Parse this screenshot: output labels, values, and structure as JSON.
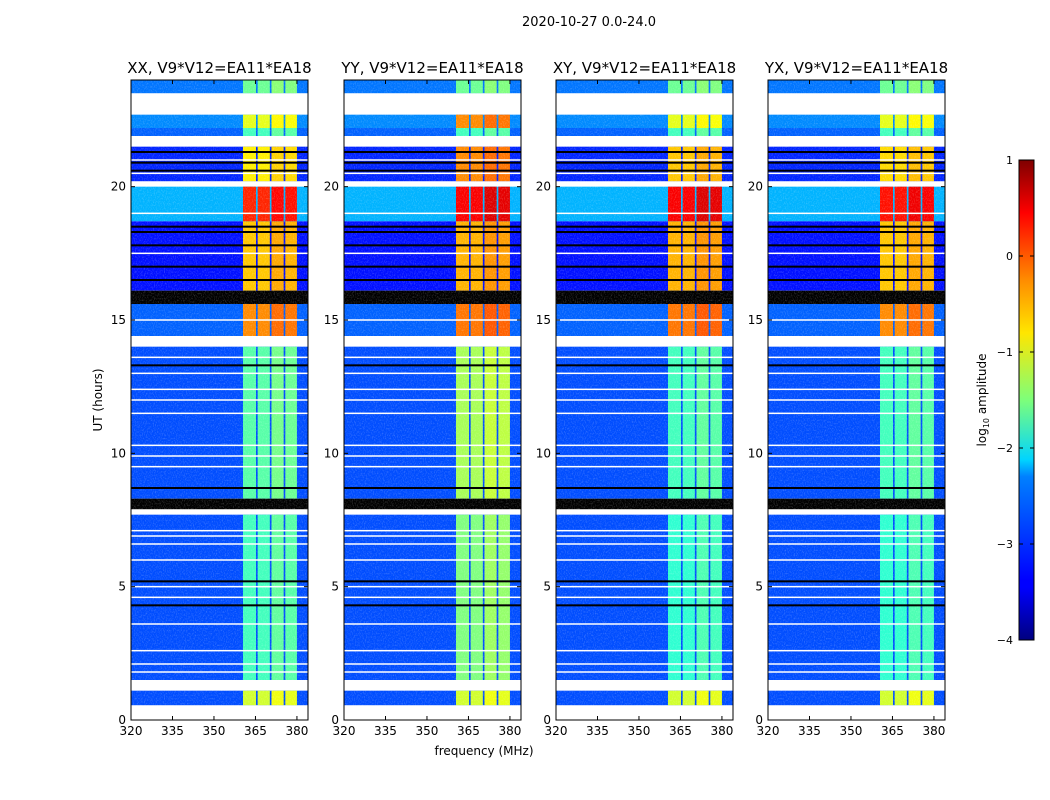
{
  "chart_data": {
    "type": "heatmap",
    "title": "2020-10-27 0.0-24.0",
    "xlabel": "frequency (MHz)",
    "ylabel": "UT (hours)",
    "xlim": [
      320,
      384
    ],
    "ylim": [
      0,
      24
    ],
    "xticks": [
      "320",
      "335",
      "350",
      "365",
      "380"
    ],
    "xtick_values": [
      320,
      335,
      350,
      365,
      380
    ],
    "yticks": [
      "0",
      "5",
      "10",
      "15",
      "20"
    ],
    "ytick_values": [
      0,
      5,
      10,
      15,
      20
    ],
    "panels": [
      {
        "title": "XX, V9*V12=EA11*EA18"
      },
      {
        "title": "YY, V9*V12=EA11*EA18"
      },
      {
        "title": "XY, V9*V12=EA11*EA18"
      },
      {
        "title": "YX, V9*V12=EA11*EA18"
      }
    ],
    "colorbar": {
      "label_main": "log",
      "label_sub": "10",
      "label_rest": " amplitude",
      "range": [
        -4,
        1
      ],
      "ticks": [
        "1",
        "0",
        "−1",
        "−2",
        "−3",
        "−4"
      ],
      "tick_values": [
        1,
        0,
        -1,
        -2,
        -3,
        -4
      ],
      "colormap": "jet"
    },
    "signal_blocks_mhz": [
      [
        360.5,
        365.2
      ],
      [
        365.8,
        370.2
      ],
      [
        370.8,
        375.2
      ],
      [
        375.8,
        380.0
      ]
    ],
    "block_offsets": [
      0,
      0,
      0.15,
      0.1
    ],
    "segments": [
      {
        "t": [
          23.5,
          24
        ],
        "bg": -2.8,
        "sig": [
          -1.6,
          -1.6,
          -1.6,
          -1.6
        ]
      },
      {
        "t": [
          22.7,
          23.5
        ],
        "flag": true
      },
      {
        "t": [
          22.2,
          22.7
        ],
        "bg": -2.7,
        "sig": [
          -1.0,
          -0.3,
          -1.0,
          -1.0
        ]
      },
      {
        "t": [
          21.9,
          22.2
        ],
        "bg": -2.9,
        "sig": [
          -1.8,
          -1.8,
          -1.8,
          -1.8
        ]
      },
      {
        "t": [
          21.5,
          21.9
        ],
        "flag": true
      },
      {
        "t": [
          20.2,
          21.5
        ],
        "bg": -3.2,
        "sig": [
          -0.8,
          -0.3,
          -0.6,
          -0.7
        ]
      },
      {
        "t": [
          20.0,
          20.2
        ],
        "flag": true
      },
      {
        "t": [
          18.7,
          20.0
        ],
        "bg": -2.5,
        "sig": [
          0.2,
          0.4,
          0.4,
          0.3
        ]
      },
      {
        "t": [
          16.1,
          18.7
        ],
        "bg": -3.3,
        "sig": [
          -0.6,
          -0.5,
          -0.5,
          -0.6
        ]
      },
      {
        "t": [
          15.6,
          16.1
        ],
        "zero": true
      },
      {
        "t": [
          14.4,
          15.6
        ],
        "bg": -2.9,
        "sig": [
          -0.3,
          -0.2,
          -0.2,
          -0.3
        ]
      },
      {
        "t": [
          14.0,
          14.4
        ],
        "flag": true
      },
      {
        "t": [
          8.3,
          14.0
        ],
        "bg": -3.0,
        "sig": [
          -1.7,
          -1.3,
          -1.8,
          -1.8
        ]
      },
      {
        "t": [
          7.9,
          8.3
        ],
        "zero": true
      },
      {
        "t": [
          7.7,
          7.9
        ],
        "flag": true
      },
      {
        "t": [
          1.5,
          7.7
        ],
        "bg": -3.0,
        "sig": [
          -1.8,
          -1.5,
          -1.9,
          -1.9
        ]
      },
      {
        "t": [
          1.1,
          1.5
        ],
        "flag": true
      },
      {
        "t": [
          0.55,
          1.1
        ],
        "bg": -3.0,
        "sig": [
          -1.1,
          -1.1,
          -1.1,
          -1.1
        ]
      },
      {
        "t": [
          0,
          0.55
        ],
        "flag": true
      }
    ],
    "flagged_lines_hours": [
      1.8,
      2.1,
      2.6,
      3.6,
      4.6,
      5.0,
      6.0,
      6.6,
      6.9,
      7.1,
      9.5,
      9.9,
      10.3,
      11.5,
      12.0,
      12.4,
      13.0,
      13.6,
      15.0,
      17.5,
      19.0,
      20.5,
      21.0
    ],
    "zero_lines_hours": [
      4.3,
      5.2,
      8.7,
      13.3,
      16.5,
      17.0,
      17.8,
      18.3,
      18.5,
      20.6,
      20.9,
      21.3
    ]
  }
}
